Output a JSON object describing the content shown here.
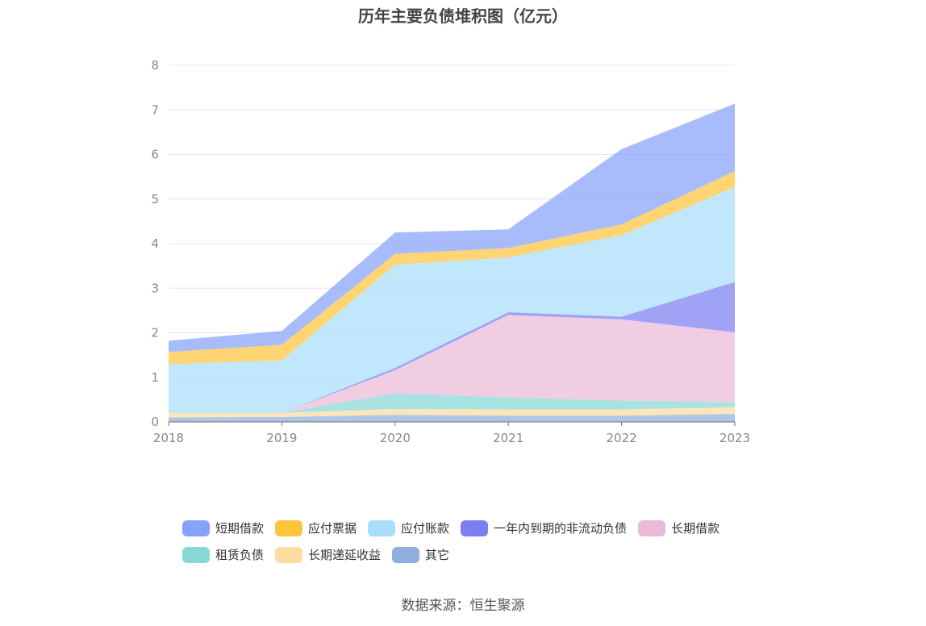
{
  "chart_data": {
    "type": "area",
    "stacked": true,
    "title": "历年主要负债堆积图（亿元）",
    "x": [
      "2018",
      "2019",
      "2020",
      "2021",
      "2022",
      "2023"
    ],
    "ylim": [
      0,
      8
    ],
    "yticks": [
      "0",
      "1",
      "2",
      "3",
      "4",
      "5",
      "6",
      "7",
      "8"
    ],
    "grid": true,
    "legend_position": "bottom",
    "series": [
      {
        "name": "其它",
        "color": "#8fafdc",
        "values": [
          0.1,
          0.11,
          0.16,
          0.14,
          0.14,
          0.18
        ]
      },
      {
        "name": "长期递延收益",
        "color": "#ffdca0",
        "values": [
          0.1,
          0.09,
          0.13,
          0.14,
          0.14,
          0.15
        ]
      },
      {
        "name": "租赁负债",
        "color": "#87d8d6",
        "values": [
          0.0,
          0.0,
          0.35,
          0.27,
          0.2,
          0.11
        ]
      },
      {
        "name": "长期借款",
        "color": "#ebbad9",
        "values": [
          0.0,
          0.0,
          0.52,
          1.85,
          1.82,
          1.57
        ]
      },
      {
        "name": "一年内到期的非流动负债",
        "color": "#7b7ef2",
        "values": [
          0.0,
          0.0,
          0.05,
          0.06,
          0.06,
          1.13
        ]
      },
      {
        "name": "应付账款",
        "color": "#a8defb",
        "values": [
          1.1,
          1.18,
          2.32,
          1.23,
          1.83,
          2.13
        ]
      },
      {
        "name": "应付票据",
        "color": "#ffc53d",
        "values": [
          0.27,
          0.35,
          0.24,
          0.21,
          0.24,
          0.36
        ]
      },
      {
        "name": "短期借款",
        "color": "#86a2fb",
        "values": [
          0.25,
          0.31,
          0.48,
          0.42,
          1.69,
          1.51
        ]
      }
    ]
  },
  "legend": {
    "row1": [
      "短期借款",
      "应付票据",
      "应付账款",
      "一年内到期的非流动负债",
      "长期借款"
    ],
    "row2": [
      "租赁负债",
      "长期递延收益",
      "其它"
    ],
    "colors": {
      "短期借款": "#86a2fb",
      "应付票据": "#ffc53d",
      "应付账款": "#a8defb",
      "一年内到期的非流动负债": "#7b7ef2",
      "长期借款": "#ebbad9",
      "租赁负债": "#87d8d6",
      "长期递延收益": "#ffdca0",
      "其它": "#8fafdc"
    }
  },
  "source": "数据来源：恒生聚源"
}
